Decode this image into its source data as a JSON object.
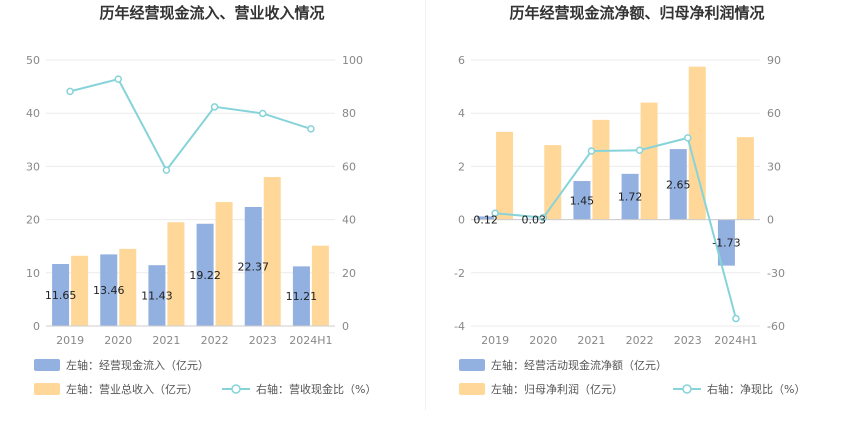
{
  "colors": {
    "bar_blue": "#92b0e0",
    "bar_orange": "#ffd899",
    "line_teal": "#86d3d9",
    "grid": "#ebebeb"
  },
  "chart_data": [
    {
      "type": "bar",
      "title": "历年经营现金流入、营业收入情况",
      "categories": [
        "2019",
        "2020",
        "2021",
        "2022",
        "2023",
        "2024H1"
      ],
      "left_axis": {
        "ylim": [
          0,
          50
        ],
        "ticks": [
          0,
          10,
          20,
          30,
          40,
          50
        ]
      },
      "right_axis": {
        "ylim": [
          0,
          100
        ],
        "ticks": [
          0,
          20,
          40,
          60,
          80,
          100
        ]
      },
      "series": [
        {
          "name": "左轴：经营现金流入（亿元）",
          "axis": "left",
          "kind": "bar",
          "values": [
            11.65,
            13.46,
            11.43,
            19.22,
            22.37,
            11.21
          ],
          "show_labels": true
        },
        {
          "name": "左轴：营业总收入（亿元）",
          "axis": "left",
          "kind": "bar",
          "values": [
            13.2,
            14.5,
            19.5,
            23.3,
            28.0,
            15.1
          ]
        },
        {
          "name": "右轴：营收现金比（%）",
          "axis": "right",
          "kind": "line",
          "values": [
            88.2,
            92.8,
            58.6,
            82.4,
            79.9,
            74.1
          ]
        }
      ]
    },
    {
      "type": "bar",
      "title": "历年经营现金流净额、归母净利润情况",
      "categories": [
        "2019",
        "2020",
        "2021",
        "2022",
        "2023",
        "2024H1"
      ],
      "left_axis": {
        "ylim": [
          -4,
          6
        ],
        "ticks": [
          -4,
          -2,
          0,
          2,
          4,
          6
        ]
      },
      "right_axis": {
        "ylim": [
          -60,
          90
        ],
        "ticks": [
          -60,
          -30,
          0,
          30,
          60,
          90
        ]
      },
      "series": [
        {
          "name": "左轴：经营活动现金流净额（亿元）",
          "axis": "left",
          "kind": "bar",
          "values": [
            0.12,
            0.03,
            1.45,
            1.72,
            2.65,
            -1.73
          ],
          "show_labels": true
        },
        {
          "name": "左轴：归母净利润（亿元）",
          "axis": "left",
          "kind": "bar",
          "values": [
            3.3,
            2.8,
            3.75,
            4.4,
            5.75,
            3.1
          ]
        },
        {
          "name": "右轴：净现比（%）",
          "axis": "right",
          "kind": "line",
          "values": [
            3.6,
            1.1,
            38.7,
            39.1,
            46.1,
            -55.8
          ]
        }
      ]
    }
  ]
}
